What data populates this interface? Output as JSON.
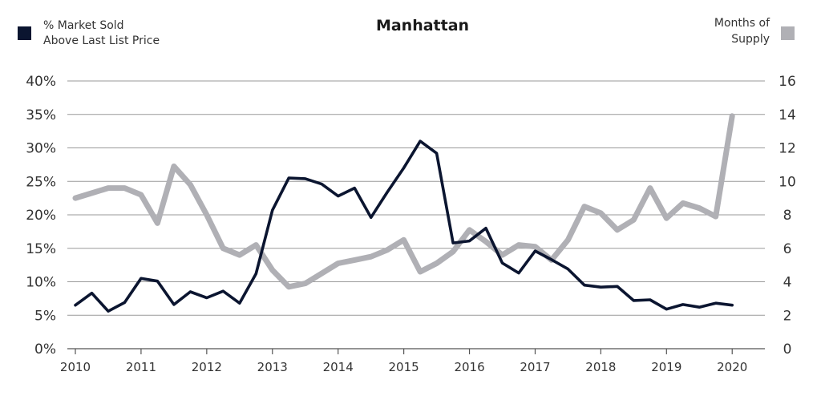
{
  "chart_data": {
    "type": "line",
    "title": "Manhattan",
    "left_legend": {
      "line1": "% Market Sold",
      "line2": "Above Last List Price",
      "color": "#0b1530"
    },
    "right_legend": {
      "line1": "Months of",
      "line2": "Supply",
      "color": "#b0b0b5"
    },
    "x_ticks": [
      "2010",
      "2011",
      "2012",
      "2013",
      "2014",
      "2015",
      "2016",
      "2017",
      "2018",
      "2019",
      "2020"
    ],
    "x_range": [
      2010.0,
      2020.4
    ],
    "y_left": {
      "ticks": [
        "40%",
        "35%",
        "30%",
        "25%",
        "20%",
        "15%",
        "10%",
        "5%",
        "0%"
      ],
      "range": [
        0,
        40
      ]
    },
    "y_right": {
      "ticks": [
        "16",
        "14",
        "12",
        "10",
        "8",
        "6",
        "4",
        "2",
        "0"
      ],
      "range": [
        0,
        16
      ]
    },
    "grid": true,
    "legend_placement": "top",
    "series": [
      {
        "name": "% Market Sold Above Last List Price",
        "axis": "left",
        "color": "#0b1530",
        "points": [
          [
            2010.0,
            6.5
          ],
          [
            2010.25,
            8.3
          ],
          [
            2010.5,
            5.6
          ],
          [
            2010.75,
            6.9
          ],
          [
            2011.0,
            10.5
          ],
          [
            2011.25,
            10.1
          ],
          [
            2011.5,
            6.6
          ],
          [
            2011.75,
            8.5
          ],
          [
            2012.0,
            7.6
          ],
          [
            2012.25,
            8.6
          ],
          [
            2012.5,
            6.8
          ],
          [
            2012.75,
            11.2
          ],
          [
            2013.0,
            20.7
          ],
          [
            2013.25,
            25.5
          ],
          [
            2013.5,
            25.4
          ],
          [
            2013.75,
            24.6
          ],
          [
            2014.0,
            22.8
          ],
          [
            2014.25,
            24.0
          ],
          [
            2014.5,
            19.6
          ],
          [
            2014.75,
            23.4
          ],
          [
            2015.0,
            27.0
          ],
          [
            2015.25,
            31.0
          ],
          [
            2015.5,
            29.2
          ],
          [
            2015.75,
            15.8
          ],
          [
            2016.0,
            16.1
          ],
          [
            2016.25,
            18.0
          ],
          [
            2016.5,
            12.8
          ],
          [
            2016.75,
            11.3
          ],
          [
            2017.0,
            14.6
          ],
          [
            2017.25,
            13.3
          ],
          [
            2017.5,
            11.9
          ],
          [
            2017.75,
            9.5
          ],
          [
            2018.0,
            9.2
          ],
          [
            2018.25,
            9.3
          ],
          [
            2018.5,
            7.2
          ],
          [
            2018.75,
            7.3
          ],
          [
            2019.0,
            5.9
          ],
          [
            2019.25,
            6.6
          ],
          [
            2019.5,
            6.2
          ],
          [
            2019.75,
            6.8
          ],
          [
            2020.0,
            6.5
          ]
        ]
      },
      {
        "name": "Months of Supply",
        "axis": "right",
        "color": "#b0b0b5",
        "points": [
          [
            2010.0,
            9.0
          ],
          [
            2010.25,
            9.3
          ],
          [
            2010.5,
            9.6
          ],
          [
            2010.75,
            9.6
          ],
          [
            2011.0,
            9.2
          ],
          [
            2011.25,
            7.5
          ],
          [
            2011.5,
            10.9
          ],
          [
            2011.75,
            9.8
          ],
          [
            2012.0,
            8.0
          ],
          [
            2012.25,
            6.0
          ],
          [
            2012.5,
            5.6
          ],
          [
            2012.75,
            6.2
          ],
          [
            2013.0,
            4.7
          ],
          [
            2013.25,
            3.7
          ],
          [
            2013.5,
            3.9
          ],
          [
            2013.75,
            4.5
          ],
          [
            2014.0,
            5.1
          ],
          [
            2014.25,
            5.3
          ],
          [
            2014.5,
            5.5
          ],
          [
            2014.75,
            5.9
          ],
          [
            2015.0,
            6.5
          ],
          [
            2015.25,
            4.6
          ],
          [
            2015.5,
            5.1
          ],
          [
            2015.75,
            5.8
          ],
          [
            2016.0,
            7.1
          ],
          [
            2016.25,
            6.4
          ],
          [
            2016.5,
            5.6
          ],
          [
            2016.75,
            6.2
          ],
          [
            2017.0,
            6.1
          ],
          [
            2017.25,
            5.3
          ],
          [
            2017.5,
            6.5
          ],
          [
            2017.75,
            8.5
          ],
          [
            2018.0,
            8.1
          ],
          [
            2018.25,
            7.1
          ],
          [
            2018.5,
            7.7
          ],
          [
            2018.75,
            9.6
          ],
          [
            2019.0,
            7.8
          ],
          [
            2019.25,
            8.7
          ],
          [
            2019.5,
            8.4
          ],
          [
            2019.75,
            7.9
          ],
          [
            2020.0,
            13.9
          ]
        ]
      }
    ]
  }
}
